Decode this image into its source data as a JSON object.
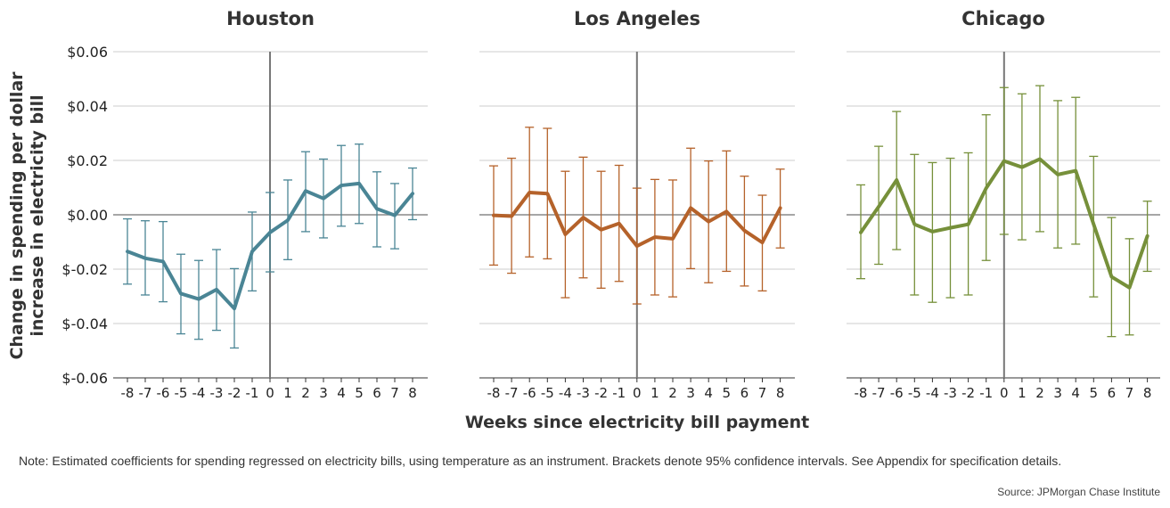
{
  "chart_data": [
    {
      "type": "line",
      "title": "Houston",
      "color": "#4a8595",
      "x": [
        -8,
        -7,
        -6,
        -5,
        -4,
        -3,
        -2,
        -1,
        0,
        1,
        2,
        3,
        4,
        5,
        6,
        7,
        8
      ],
      "values": [
        -0.0135,
        -0.016,
        -0.0172,
        -0.029,
        -0.031,
        -0.0275,
        -0.0345,
        -0.0135,
        -0.0065,
        -0.002,
        0.0088,
        0.006,
        0.0108,
        0.0115,
        0.0022,
        -0.0002,
        0.0078
      ],
      "lower": [
        -0.0255,
        -0.0295,
        -0.032,
        -0.0438,
        -0.0458,
        -0.0425,
        -0.049,
        -0.028,
        -0.021,
        -0.0165,
        -0.0062,
        -0.0085,
        -0.0042,
        -0.0032,
        -0.0118,
        -0.0125,
        -0.0018
      ],
      "upper": [
        -0.0015,
        -0.0022,
        -0.0025,
        -0.0145,
        -0.0168,
        -0.0128,
        -0.0198,
        0.001,
        0.0082,
        0.0128,
        0.0232,
        0.0205,
        0.0255,
        0.026,
        0.0158,
        0.0115,
        0.0172
      ]
    },
    {
      "type": "line",
      "title": "Los Angeles",
      "color": "#b5622a",
      "x": [
        -8,
        -7,
        -6,
        -5,
        -4,
        -3,
        -2,
        -1,
        0,
        1,
        2,
        3,
        4,
        5,
        6,
        7,
        8
      ],
      "values": [
        -0.0002,
        -0.0005,
        0.0082,
        0.0078,
        -0.0072,
        -0.001,
        -0.0055,
        -0.0032,
        -0.0115,
        -0.0082,
        -0.0088,
        0.0025,
        -0.0025,
        0.0012,
        -0.0058,
        -0.0102,
        0.0025
      ],
      "lower": [
        -0.0185,
        -0.0215,
        -0.0155,
        -0.0162,
        -0.0305,
        -0.0232,
        -0.027,
        -0.0245,
        -0.0328,
        -0.0295,
        -0.0302,
        -0.0198,
        -0.025,
        -0.0208,
        -0.0262,
        -0.028,
        -0.0122
      ],
      "upper": [
        0.018,
        0.0208,
        0.0322,
        0.0318,
        0.016,
        0.0212,
        0.016,
        0.0182,
        0.0098,
        0.013,
        0.0128,
        0.0245,
        0.0198,
        0.0235,
        0.0142,
        0.0072,
        0.0168
      ]
    },
    {
      "type": "line",
      "title": "Chicago",
      "color": "#76903a",
      "x": [
        -8,
        -7,
        -6,
        -5,
        -4,
        -3,
        -2,
        -1,
        0,
        1,
        2,
        3,
        4,
        5,
        6,
        7,
        8
      ],
      "values": [
        -0.0065,
        0.003,
        0.0128,
        -0.0035,
        -0.0062,
        -0.0048,
        -0.0035,
        0.0098,
        0.0198,
        0.0175,
        0.0205,
        0.0148,
        0.0162,
        -0.0035,
        -0.0228,
        -0.0268,
        -0.0078
      ],
      "lower": [
        -0.0235,
        -0.0182,
        -0.0128,
        -0.0295,
        -0.0322,
        -0.0305,
        -0.0295,
        -0.0168,
        -0.0072,
        -0.0092,
        -0.0062,
        -0.0122,
        -0.0108,
        -0.0302,
        -0.0448,
        -0.0442,
        -0.0208
      ],
      "upper": [
        0.011,
        0.0252,
        0.038,
        0.0222,
        0.0192,
        0.0208,
        0.0228,
        0.0368,
        0.0468,
        0.0445,
        0.0475,
        0.042,
        0.0432,
        0.0215,
        -0.001,
        -0.0088,
        0.005
      ]
    }
  ],
  "axes": {
    "ylabel_line1": "Change in spending per dollar",
    "ylabel_line2": "increase in electricity bill",
    "xlabel": "Weeks since electricity bill payment",
    "ylim": [
      -0.06,
      0.06
    ],
    "yticks": [
      0.06,
      0.04,
      0.02,
      0.0,
      -0.02,
      -0.04,
      -0.06
    ],
    "ytick_labels": [
      "$0.06",
      "$0.04",
      "$0.02",
      "$0.00",
      "$-0.02",
      "$-0.04",
      "$-0.06"
    ],
    "xtick_labels": [
      "-8",
      "-7",
      "-6",
      "-5",
      "-4",
      "-3",
      "-2",
      "-1",
      "0",
      "1",
      "2",
      "3",
      "4",
      "5",
      "6",
      "7",
      "8"
    ],
    "grid": true
  },
  "note": "Note: Estimated coefficients for spending regressed on electricity bills, using temperature as an instrument. Brackets denote 95% confidence intervals. See Appendix for specification details.",
  "source": "Source: JPMorgan Chase Institute"
}
